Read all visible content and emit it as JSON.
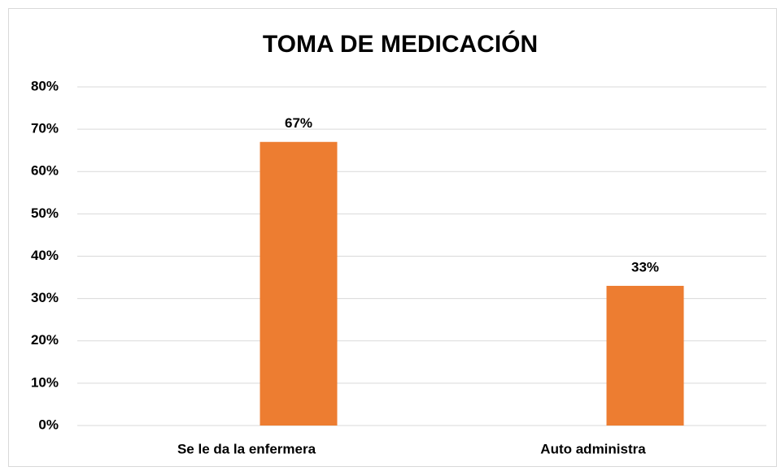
{
  "chart_data": {
    "type": "bar",
    "title": "TOMA DE MEDICACIÓN",
    "categories": [
      "Se le da la enfermera",
      "Auto administra"
    ],
    "values": [
      67,
      33
    ],
    "value_labels": [
      "67%",
      "33%"
    ],
    "color": "#ed7d31",
    "ylim": [
      0,
      80
    ],
    "yticks": [
      {
        "value": 0,
        "label": "0%"
      },
      {
        "value": 10,
        "label": "10%"
      },
      {
        "value": 20,
        "label": "20%"
      },
      {
        "value": 30,
        "label": "30%"
      },
      {
        "value": 40,
        "label": "40%"
      },
      {
        "value": 50,
        "label": "50%"
      },
      {
        "value": 60,
        "label": "60%"
      },
      {
        "value": 70,
        "label": "70%"
      },
      {
        "value": 80,
        "label": "80%"
      }
    ],
    "grid": true
  }
}
